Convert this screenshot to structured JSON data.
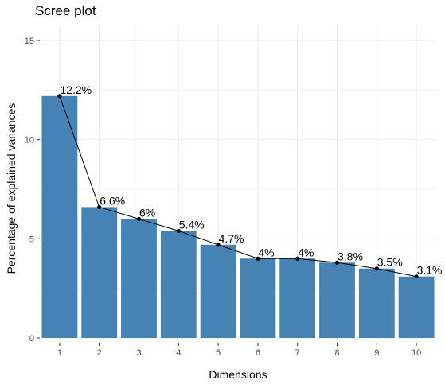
{
  "chart_data": {
    "type": "bar",
    "title": "Scree plot",
    "xlabel": "Dimensions",
    "ylabel": "Percentage of explained variances",
    "categories": [
      "1",
      "2",
      "3",
      "4",
      "5",
      "6",
      "7",
      "8",
      "9",
      "10"
    ],
    "values": [
      12.2,
      6.6,
      6.0,
      5.4,
      4.7,
      4.0,
      4.0,
      3.8,
      3.5,
      3.1
    ],
    "data_labels": [
      "12.2%",
      "6.6%",
      "6%",
      "5.4%",
      "4.7%",
      "4%",
      "4%",
      "3.8%",
      "3.5%",
      "3.1%"
    ],
    "ylim": [
      0,
      15
    ],
    "yticks": [
      0,
      5,
      10,
      15
    ],
    "ytick_labels": [
      "0",
      "5",
      "10",
      "15"
    ],
    "overlay": "line-with-points",
    "grid": true,
    "legend": "none",
    "colors": {
      "bar": "#4682b4",
      "line": "#000000",
      "grid": "#ebebeb",
      "panel_background": "#ffffff"
    }
  }
}
